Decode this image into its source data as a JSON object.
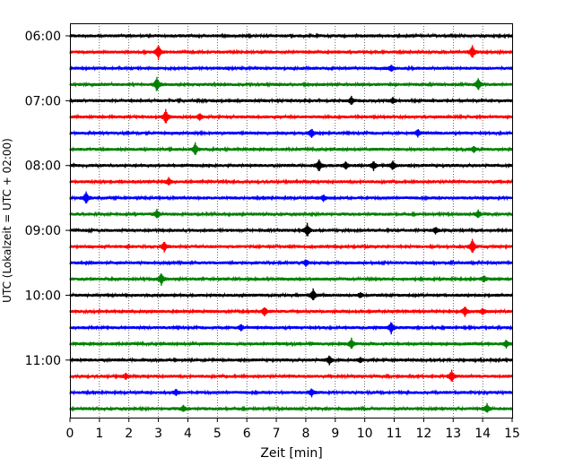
{
  "chart_data": {
    "type": "line",
    "xlabel": "Zeit  [min]",
    "ylabel": "UTC (Lokalzeit = UTC + 02:00)",
    "xlim": [
      0,
      15
    ],
    "x_ticks": [
      "0",
      "1",
      "2",
      "3",
      "4",
      "5",
      "6",
      "7",
      "8",
      "9",
      "10",
      "11",
      "12",
      "13",
      "14",
      "15"
    ],
    "y_tick_labels": [
      "06:00",
      "07:00",
      "08:00",
      "09:00",
      "10:00",
      "11:00"
    ],
    "grid_x": true,
    "trace_interval_min": 15,
    "start_time": "06:00",
    "end_time": "11:45",
    "color_cycle": [
      "#000000",
      "#ff0000",
      "#0000ff",
      "#008000"
    ],
    "traces": [
      {
        "start": "06:00",
        "events": []
      },
      {
        "start": "06:15",
        "events": [
          {
            "t": 3.0,
            "amp": 1.0
          },
          {
            "t": 13.65,
            "amp": 0.9
          }
        ]
      },
      {
        "start": "06:30",
        "events": [
          {
            "t": 10.9,
            "amp": 0.4
          }
        ]
      },
      {
        "start": "06:45",
        "events": [
          {
            "t": 2.95,
            "amp": 1.0
          },
          {
            "t": 13.85,
            "amp": 0.8
          }
        ]
      },
      {
        "start": "07:00",
        "events": [
          {
            "t": 9.55,
            "amp": 0.5
          },
          {
            "t": 10.95,
            "amp": 0.4
          }
        ]
      },
      {
        "start": "07:15",
        "events": [
          {
            "t": 3.25,
            "amp": 1.0
          },
          {
            "t": 4.4,
            "amp": 0.4
          }
        ]
      },
      {
        "start": "07:30",
        "events": [
          {
            "t": 8.2,
            "amp": 0.6
          },
          {
            "t": 11.8,
            "amp": 0.5
          }
        ]
      },
      {
        "start": "07:45",
        "events": [
          {
            "t": 4.25,
            "amp": 0.9
          },
          {
            "t": 13.7,
            "amp": 0.4
          }
        ]
      },
      {
        "start": "08:00",
        "events": [
          {
            "t": 8.45,
            "amp": 0.8
          },
          {
            "t": 9.35,
            "amp": 0.5
          },
          {
            "t": 10.3,
            "amp": 0.6
          },
          {
            "t": 10.95,
            "amp": 0.6
          }
        ]
      },
      {
        "start": "08:15",
        "events": [
          {
            "t": 3.35,
            "amp": 0.5
          }
        ]
      },
      {
        "start": "08:30",
        "events": [
          {
            "t": 0.55,
            "amp": 0.8
          },
          {
            "t": 8.6,
            "amp": 0.4
          }
        ]
      },
      {
        "start": "08:45",
        "events": [
          {
            "t": 2.95,
            "amp": 0.6
          },
          {
            "t": 13.85,
            "amp": 0.5
          }
        ]
      },
      {
        "start": "09:00",
        "events": [
          {
            "t": 8.05,
            "amp": 0.9
          },
          {
            "t": 12.4,
            "amp": 0.4
          }
        ]
      },
      {
        "start": "09:15",
        "events": [
          {
            "t": 3.2,
            "amp": 0.7
          },
          {
            "t": 13.65,
            "amp": 1.0
          }
        ]
      },
      {
        "start": "09:30",
        "events": [
          {
            "t": 8.0,
            "amp": 0.4
          }
        ]
      },
      {
        "start": "09:45",
        "events": [
          {
            "t": 3.1,
            "amp": 0.8
          },
          {
            "t": 14.05,
            "amp": 0.4
          }
        ]
      },
      {
        "start": "10:00",
        "events": [
          {
            "t": 8.25,
            "amp": 0.8
          },
          {
            "t": 9.85,
            "amp": 0.3
          }
        ]
      },
      {
        "start": "10:15",
        "events": [
          {
            "t": 6.6,
            "amp": 0.6
          },
          {
            "t": 13.4,
            "amp": 0.7
          },
          {
            "t": 14.0,
            "amp": 0.4
          }
        ]
      },
      {
        "start": "10:30",
        "events": [
          {
            "t": 5.8,
            "amp": 0.4
          },
          {
            "t": 10.9,
            "amp": 0.8
          }
        ]
      },
      {
        "start": "10:45",
        "events": [
          {
            "t": 9.55,
            "amp": 0.7
          },
          {
            "t": 14.8,
            "amp": 0.5
          }
        ]
      },
      {
        "start": "11:00",
        "events": [
          {
            "t": 8.8,
            "amp": 0.6
          },
          {
            "t": 9.85,
            "amp": 0.3
          }
        ]
      },
      {
        "start": "11:15",
        "events": [
          {
            "t": 1.9,
            "amp": 0.4
          },
          {
            "t": 12.95,
            "amp": 0.8
          }
        ]
      },
      {
        "start": "11:30",
        "events": [
          {
            "t": 3.6,
            "amp": 0.4
          },
          {
            "t": 8.2,
            "amp": 0.5
          }
        ]
      },
      {
        "start": "11:45",
        "events": [
          {
            "t": 3.85,
            "amp": 0.4
          },
          {
            "t": 14.15,
            "amp": 0.6
          }
        ]
      }
    ]
  }
}
